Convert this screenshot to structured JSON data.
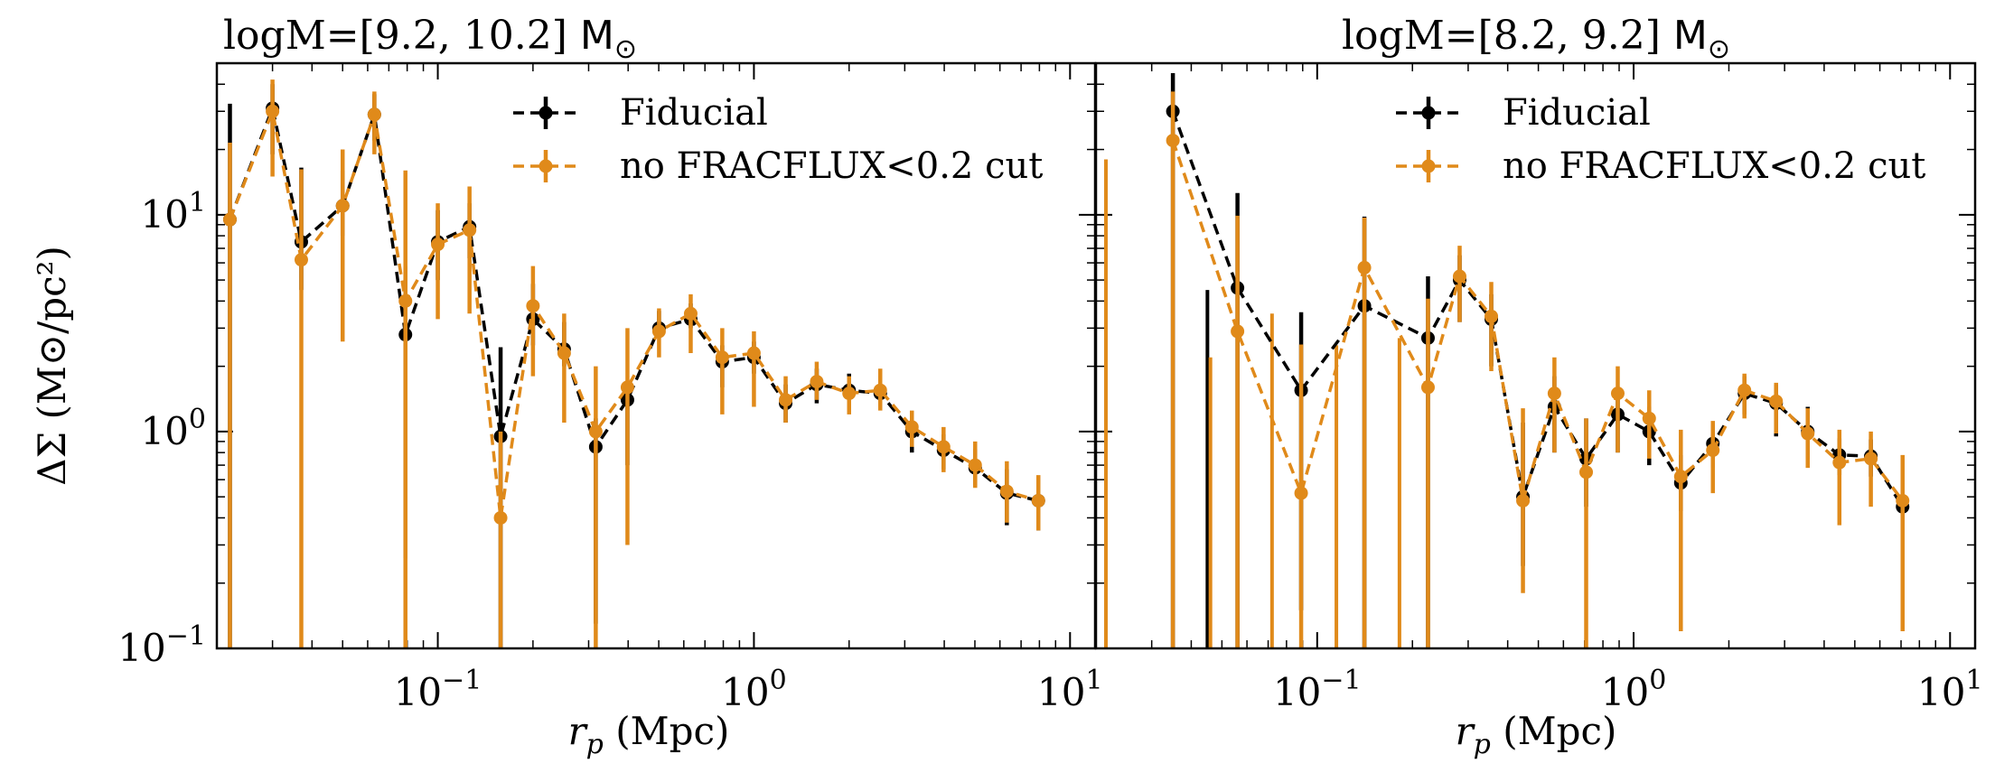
{
  "chart_data": [
    {
      "type": "line",
      "title": "logM=[9.2, 10.2]",
      "title_unit": "M",
      "title_unit_sub": "⊙",
      "xlabel_main": "r",
      "xlabel_sub": "p",
      "xlabel_unit": " (Mpc)",
      "ylabel": "ΔΣ (M⊙/pc²)",
      "xscale": "log",
      "yscale": "log",
      "xlim": [
        0.02,
        12
      ],
      "ylim": [
        0.1,
        50
      ],
      "xticks": [
        {
          "base": "10",
          "exp": "−1"
        },
        {
          "base": "10",
          "exp": "0"
        },
        {
          "base": "10",
          "exp": "1"
        }
      ],
      "yticks": [
        {
          "base": "10",
          "exp": "−1"
        },
        {
          "base": "10",
          "exp": "0"
        },
        {
          "base": "10",
          "exp": "1"
        }
      ],
      "legend_position": "top-right",
      "series": [
        {
          "name": "Fiducial",
          "color": "#000000",
          "x": [
            0.022,
            0.03,
            0.037,
            0.05,
            0.063,
            0.079,
            0.1,
            0.126,
            0.158,
            0.2,
            0.251,
            0.316,
            0.398,
            0.501,
            0.631,
            0.794,
            1.0,
            1.26,
            1.58,
            2.0,
            2.51,
            3.16,
            3.98,
            5.01,
            6.31,
            7.94
          ],
          "y": [
            9.5,
            31.0,
            7.5,
            11.0,
            29.0,
            2.8,
            7.5,
            8.8,
            0.95,
            3.3,
            2.4,
            0.85,
            1.4,
            3.0,
            3.3,
            2.1,
            2.2,
            1.35,
            1.65,
            1.55,
            1.5,
            1.0,
            0.82,
            0.68,
            0.52,
            0.48
          ],
          "yerr_low": [
            9.5,
            12,
            3,
            3,
            7,
            2.54,
            2.5,
            2.5,
            0.9,
            0.8,
            0.4,
            0.72,
            0.7,
            0.3,
            0.3,
            0.5,
            0.35,
            0.25,
            0.3,
            0.25,
            0.2,
            0.2,
            0.15,
            0.12,
            0.15,
            0.13
          ],
          "yerr_high": [
            23,
            9,
            9,
            5,
            7,
            3,
            3,
            2.5,
            1.5,
            1.5,
            0.8,
            0.3,
            0.3,
            0.6,
            0.6,
            0.4,
            0.4,
            0.3,
            0.3,
            0.3,
            0.3,
            0.2,
            0.15,
            0.15,
            0.15,
            0.12
          ]
        },
        {
          "name": "no FRACFLUX<0.2 cut",
          "color": "#E08A1A",
          "x": [
            0.022,
            0.03,
            0.037,
            0.05,
            0.063,
            0.079,
            0.1,
            0.126,
            0.158,
            0.2,
            0.251,
            0.316,
            0.398,
            0.501,
            0.631,
            0.794,
            1.0,
            1.26,
            1.58,
            2.0,
            2.51,
            3.16,
            3.98,
            5.01,
            6.31,
            7.94
          ],
          "y": [
            9.5,
            30.0,
            6.2,
            11.0,
            29.0,
            4.0,
            7.3,
            8.5,
            0.4,
            3.8,
            2.3,
            1.0,
            1.6,
            2.9,
            3.5,
            2.2,
            2.3,
            1.4,
            1.7,
            1.5,
            1.55,
            1.05,
            0.85,
            0.7,
            0.53,
            0.48
          ],
          "yerr_low": [
            9.45,
            15,
            6.15,
            8.4,
            10,
            3.95,
            4,
            5,
            0.35,
            2,
            1.2,
            0.95,
            1.3,
            0.7,
            1.2,
            1.0,
            1.0,
            0.3,
            0.3,
            0.3,
            0.3,
            0.2,
            0.2,
            0.15,
            0.15,
            0.13
          ],
          "yerr_high": [
            12,
            12,
            10,
            9,
            8,
            12,
            4,
            5,
            0.6,
            2,
            1.2,
            1.0,
            1.4,
            0.8,
            0.8,
            0.8,
            0.6,
            0.4,
            0.4,
            0.3,
            0.4,
            0.2,
            0.2,
            0.2,
            0.2,
            0.15
          ]
        }
      ]
    },
    {
      "type": "line",
      "title": "logM=[8.2, 9.2]",
      "title_unit": "M",
      "title_unit_sub": "⊙",
      "xlabel_main": "r",
      "xlabel_sub": "p",
      "xlabel_unit": " (Mpc)",
      "xscale": "log",
      "yscale": "log",
      "xlim": [
        0.02,
        12
      ],
      "ylim": [
        0.1,
        50
      ],
      "xticks": [
        {
          "base": "10",
          "exp": "−1"
        },
        {
          "base": "10",
          "exp": "0"
        },
        {
          "base": "10",
          "exp": "1"
        }
      ],
      "legend_position": "top-right",
      "series": [
        {
          "name": "Fiducial",
          "color": "#000000",
          "x": [
            0.022,
            0.028,
            0.035,
            0.045,
            0.056,
            0.071,
            0.089,
            0.112,
            0.141,
            0.178,
            0.224,
            0.282,
            0.355,
            0.447,
            0.562,
            0.708,
            0.891,
            1.12,
            1.41,
            1.78,
            2.24,
            2.82,
            3.55,
            4.47,
            5.62,
            7.08,
            8.91
          ],
          "y": [
            null,
            null,
            30.0,
            null,
            4.6,
            null,
            1.55,
            null,
            3.8,
            null,
            2.7,
            5.0,
            3.3,
            0.5,
            1.3,
            0.75,
            1.2,
            1.0,
            0.58,
            0.88,
            1.5,
            1.35,
            1.0,
            0.78,
            0.77,
            0.45,
            null
          ],
          "yerr_low": [
            null,
            null,
            29.95,
            null,
            4.5,
            null,
            1.4,
            null,
            3.75,
            null,
            2.6,
            1.8,
            1.3,
            0.26,
            0.5,
            0.3,
            0.4,
            0.3,
            0.15,
            0.2,
            0.3,
            0.4,
            0.25,
            0.15,
            0.15,
            0.1,
            null
          ],
          "yerr_high": [
            null,
            null,
            15,
            null,
            8,
            null,
            2,
            null,
            6,
            null,
            2.5,
            1.5,
            1.0,
            0.6,
            0.5,
            0.4,
            0.4,
            0.3,
            0.2,
            0.2,
            0.3,
            0.3,
            0.3,
            0.15,
            0.15,
            0.15,
            null
          ]
        },
        {
          "name": "no FRACFLUX<0.2 cut",
          "color": "#E08A1A",
          "x": [
            0.022,
            0.028,
            0.035,
            0.045,
            0.056,
            0.071,
            0.089,
            0.112,
            0.141,
            0.178,
            0.224,
            0.282,
            0.355,
            0.447,
            0.562,
            0.708,
            0.891,
            1.12,
            1.41,
            1.78,
            2.24,
            2.82,
            3.55,
            4.47,
            5.62,
            7.08,
            8.91
          ],
          "y": [
            null,
            null,
            22.0,
            null,
            2.9,
            null,
            0.52,
            null,
            5.7,
            null,
            1.6,
            5.2,
            3.4,
            0.48,
            1.5,
            0.65,
            1.5,
            1.15,
            0.62,
            0.82,
            1.55,
            1.38,
            0.98,
            0.72,
            0.75,
            0.48,
            null
          ],
          "yerr_low": [
            null,
            null,
            21.95,
            null,
            2.85,
            null,
            0.45,
            null,
            5.65,
            null,
            1.55,
            2,
            1.5,
            0.3,
            0.7,
            0.55,
            0.7,
            0.4,
            0.5,
            0.3,
            0.4,
            0.4,
            0.3,
            0.35,
            0.3,
            0.36,
            null
          ],
          "yerr_high": [
            null,
            null,
            15,
            null,
            7,
            null,
            2,
            null,
            4,
            null,
            2.5,
            2,
            1.5,
            0.8,
            0.7,
            0.5,
            0.5,
            0.4,
            0.4,
            0.3,
            0.3,
            0.3,
            0.3,
            0.3,
            0.25,
            0.3,
            null
          ]
        }
      ],
      "extra_bars": [
        {
          "x": 0.0215,
          "ylow": 0.1,
          "yhigh": 18.0,
          "color": "#E08A1A"
        },
        {
          "x": 0.045,
          "ylow": 0.1,
          "yhigh": 4.5,
          "color": "#000000"
        },
        {
          "x": 0.046,
          "ylow": 0.1,
          "yhigh": 2.2,
          "color": "#E08A1A"
        },
        {
          "x": 0.072,
          "ylow": 0.1,
          "yhigh": 3.5,
          "color": "#E08A1A"
        },
        {
          "x": 0.115,
          "ylow": 0.1,
          "yhigh": 2.5,
          "color": "#E08A1A"
        },
        {
          "x": 0.182,
          "ylow": 0.1,
          "yhigh": 2.7,
          "color": "#E08A1A"
        }
      ]
    }
  ]
}
